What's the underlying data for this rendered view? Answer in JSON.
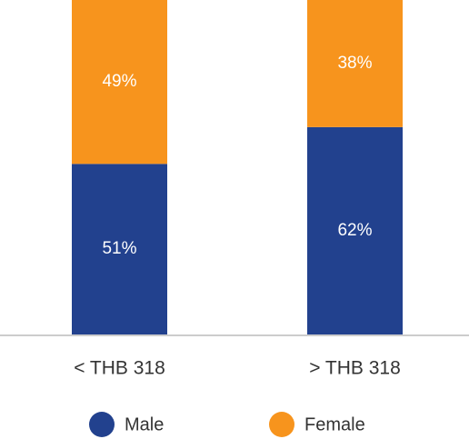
{
  "chart_data": {
    "type": "stacked_bar",
    "categories": [
      "< THB 318",
      "> THB 318"
    ],
    "series": [
      {
        "name": "Male",
        "color": "#22418e",
        "values": [
          51,
          62
        ],
        "value_labels": [
          "51%",
          "62%"
        ]
      },
      {
        "name": "Female",
        "color": "#f7941d",
        "values": [
          49,
          38
        ],
        "value_labels": [
          "49%",
          "38%"
        ]
      }
    ],
    "ylim": [
      0,
      100
    ]
  }
}
